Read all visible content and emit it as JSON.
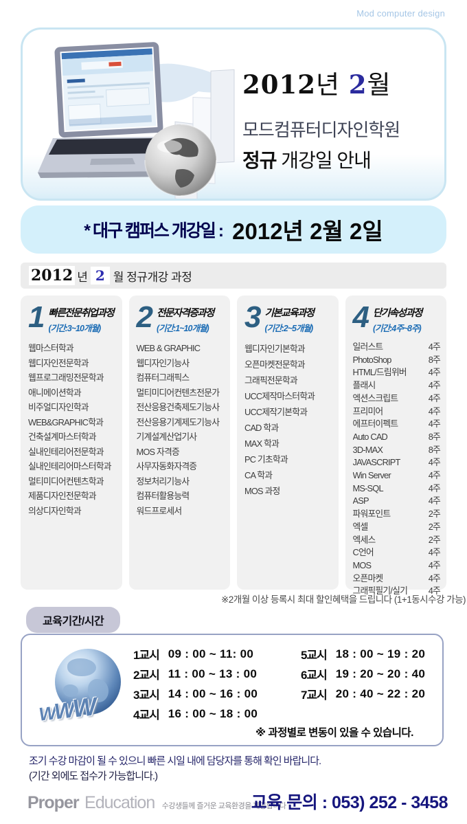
{
  "watermark": "Mod computer design",
  "header": {
    "year": "2012",
    "year_suffix": "년",
    "month": "2",
    "month_suffix": "월",
    "academy_name": "모드컴퓨터디자인학원",
    "subtitle_bold": "정규",
    "subtitle_rest": " 개강일 안내"
  },
  "campus_bar": {
    "label": "* 대구 캠퍼스 개강일 :",
    "date": "2012년  2월  2일"
  },
  "section_bar": {
    "year": "2012",
    "year_suffix": "년",
    "month": "2",
    "rest": "월 정규개강 과정"
  },
  "courses": {
    "columns": [
      {
        "number": "1",
        "title": "빠른전문취업과정",
        "period": "(기간:3~10개월)",
        "items": [
          "웹마스터학과",
          "웹디자인전문학과",
          "웹프로그래밍전문학과",
          "애니메이션학과",
          "비주얼디자인학과",
          "WEB&GRAPHIC학과",
          "건축설계마스터학과",
          "실내인테리어전문학과",
          "실내인테리어마스터학과",
          "멀티미디어컨텐츠학과",
          "제품디자인전문학과",
          "의상디자인학과"
        ]
      },
      {
        "number": "2",
        "title": "전문자격증과정",
        "period": "(기간:1~10개월)",
        "items": [
          "WEB & GRAPHIC",
          "웹디자인기능사",
          "컴퓨터그래픽스",
          "멀티미디어컨텐츠전문가",
          "전산응용건축제도기능사",
          "전산응용기계제도기능사",
          "기계설계산업기사",
          "MOS 자격증",
          "사무자동화자격증",
          "정보처리기능사",
          "컴퓨터활용능력",
          "워드프로세서"
        ]
      },
      {
        "number": "3",
        "title": "기본교육과정",
        "period": "(기간:2~5개월)",
        "items": [
          "웹디자인기본학과",
          "오픈마켓전문학과",
          "그래픽전문학과",
          "UCC제작마스터학과",
          "UCC제작기본학과",
          "CAD 학과",
          "MAX 학과",
          "PC 기초학과",
          "CA 학과",
          "MOS 과정"
        ]
      },
      {
        "number": "4",
        "title": "단기속성과정",
        "period": "(기간:4주~8주)",
        "items": [
          {
            "name": "일러스트",
            "weeks": "4주"
          },
          {
            "name": "PhotoShop",
            "weeks": "8주"
          },
          {
            "name": "HTML/드림위버",
            "weeks": "4주"
          },
          {
            "name": "플래시",
            "weeks": "4주"
          },
          {
            "name": "엑션스크립트",
            "weeks": "4주"
          },
          {
            "name": "프리미어",
            "weeks": "4주"
          },
          {
            "name": "에프터이펙트",
            "weeks": "4주"
          },
          {
            "name": "Auto CAD",
            "weeks": "8주"
          },
          {
            "name": "3D-MAX",
            "weeks": "8주"
          },
          {
            "name": "JAVASCRIPT",
            "weeks": "4주"
          },
          {
            "name": "Win Server",
            "weeks": "4주"
          },
          {
            "name": "MS-SQL",
            "weeks": "4주"
          },
          {
            "name": "ASP",
            "weeks": "4주"
          },
          {
            "name": "파워포인트",
            "weeks": "2주"
          },
          {
            "name": "엑셀",
            "weeks": "2주"
          },
          {
            "name": "엑세스",
            "weeks": "2주"
          },
          {
            "name": "C언어",
            "weeks": "4주"
          },
          {
            "name": "MOS",
            "weeks": "4주"
          },
          {
            "name": "오픈마켓",
            "weeks": "4주"
          },
          {
            "name": "그래픽필기/실기",
            "weeks": "4주"
          }
        ]
      }
    ],
    "note": "※2개월 이상 등록시 최대 할인혜택을 드립니다 (1+1동시수강 가능)"
  },
  "schedule": {
    "label": "교육기간/시간",
    "globe_letters": {
      "w1": "W",
      "w2": "W",
      "w3": "W"
    },
    "left_periods": [
      {
        "label": "1교시",
        "time": "09 : 00 ~ 11: 00"
      },
      {
        "label": "2교시",
        "time": "11 : 00 ~ 13 : 00"
      },
      {
        "label": "3교시",
        "time": "14 : 00 ~ 16 : 00"
      },
      {
        "label": "4교시",
        "time": "16 : 00 ~ 18 : 00"
      }
    ],
    "right_periods": [
      {
        "label": "5교시",
        "time": "18 : 00 ~ 19 : 20"
      },
      {
        "label": "6교시",
        "time": "19 : 20 ~ 20 : 40"
      },
      {
        "label": "7교시",
        "time": "20 : 40 ~ 22 : 20"
      }
    ],
    "note": "※ 과정별로 변동이 있을 수 있습니다."
  },
  "footer": {
    "notice_line1": "조기 수강 마감이 될 수 있으니 빠른 시일 내에 담당자를 통해 확인 바랍니다.",
    "notice_line2": "(기간 외에도 접수가 가능합니다.)",
    "logo_bold": "Proper",
    "logo_light": "Education",
    "logo_tagline": "수강생들께 즐거운 교육환경을 제공합니다",
    "contact": "교육 문의 : 053) 252 - 3458"
  }
}
